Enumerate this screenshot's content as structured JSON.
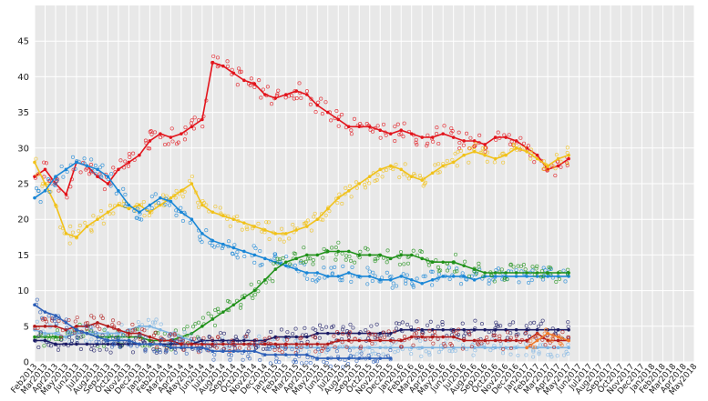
{
  "chart_data": {
    "type": "line",
    "title": "",
    "xlabel": "",
    "ylabel": "",
    "ylim": [
      0,
      50
    ],
    "y_ticks": [
      0,
      5,
      10,
      15,
      20,
      25,
      30,
      35,
      40,
      45
    ],
    "grid": true,
    "background_color": "#e8e8e8",
    "legend": "none",
    "x_months": [
      "Feb2013",
      "Mar2013",
      "Apr2013",
      "May2013",
      "Jun2013",
      "Jul2013",
      "Aug2013",
      "Sep2013",
      "Oct2013",
      "Nov2013",
      "Dec2013",
      "Jan2014",
      "Feb2014",
      "Mar2014",
      "Apr2014",
      "May2014",
      "Jun2014",
      "Jul2014",
      "Aug2014",
      "Sep2014",
      "Oct2014",
      "Nov2014",
      "Dec2014",
      "Jan2015",
      "Feb2015",
      "Mar2015",
      "Apr2015",
      "May2015",
      "Jun2015",
      "Jul2015",
      "Aug2015",
      "Sep2015",
      "Oct2015",
      "Nov2015",
      "Dec2015",
      "Jan2016",
      "Feb2016",
      "Mar2016",
      "Apr2016",
      "May2016",
      "Jun2016",
      "Jul2016",
      "Aug2016",
      "Sep2016",
      "Oct2016",
      "Nov2016",
      "Dec2016",
      "Jan2017",
      "Feb2017",
      "Mar2017",
      "Apr2017",
      "May2017",
      "Jun2017",
      "Jul2017",
      "Aug2017",
      "Sep2017",
      "Oct2017",
      "Nov2017",
      "Dec2017",
      "Jan2018",
      "Feb2018",
      "Mar2018",
      "Apr2018",
      "May2018"
    ],
    "x_tick_labels": [
      "Feb2013",
      "Mar2013",
      "Apr2013",
      "May2013",
      "Jun2013",
      "Jul2013",
      "Aug2013",
      "Sep2013",
      "Oct2013",
      "Nov2013",
      "Dec2013",
      "Jan2014",
      "Feb2014",
      "Mar2014",
      "Apr2014",
      "May2014",
      "Jun2014",
      "Jul2014",
      "Aug2014",
      "Sep2014",
      "Oct2014",
      "Nov2014",
      "Dec2014",
      "Jan2015",
      "Feb2015",
      "Mar2015",
      "Apr2015",
      "May2015",
      "Jun2015",
      "Jul2015",
      "Aug2015",
      "Sep2015",
      "Oct2015",
      "Nov2015",
      "Dec2015",
      "Jan2016",
      "Feb2016",
      "Mar2016",
      "Apr2016",
      "May2016",
      "Jun2016",
      "Jul2016",
      "Aug2016",
      "Sep2016",
      "Oct2016",
      "Nov2016",
      "Dec2016",
      "Jan2017",
      "Feb2017",
      "Mar2017",
      "Apr2017",
      "May2017",
      "Jun2017",
      "Jul2017",
      "Aug2017",
      "Sep2017",
      "Oct2017",
      "Nov2017",
      "Dec2017",
      "Jan2018",
      "Feb2018",
      "Mar2018",
      "Apr2018",
      "May2018"
    ],
    "series": [
      {
        "color": "#e3141c",
        "x": [
          "Feb2013",
          "Mar2013",
          "Apr2013",
          "May2013",
          "Jun2013",
          "Jul2013",
          "Aug2013",
          "Sep2013",
          "Oct2013",
          "Nov2013",
          "Dec2013",
          "Jan2014",
          "Feb2014",
          "Mar2014",
          "Apr2014",
          "May2014",
          "Jun2014",
          "Jul2014",
          "Aug2014",
          "Sep2014",
          "Oct2014",
          "Nov2014",
          "Dec2014",
          "Jan2015",
          "Feb2015",
          "Mar2015",
          "Apr2015",
          "May2015",
          "Jun2015",
          "Jul2015",
          "Aug2015",
          "Sep2015",
          "Oct2015",
          "Nov2015",
          "Dec2015",
          "Jan2016",
          "Feb2016",
          "Mar2016",
          "Apr2016",
          "May2016",
          "Jun2016",
          "Jul2016",
          "Aug2016",
          "Sep2016",
          "Oct2016",
          "Nov2016",
          "Dec2016",
          "Jan2017",
          "Feb2017",
          "Mar2017",
          "Apr2017",
          "May2017"
        ],
        "y": [
          26,
          27,
          25,
          23.5,
          28,
          27.5,
          26,
          25,
          27,
          28,
          29,
          31,
          32,
          31.5,
          32,
          33,
          34,
          42,
          41.5,
          40.5,
          39.5,
          39,
          37.5,
          37,
          37.5,
          38,
          37.5,
          36,
          35,
          34,
          33,
          33,
          33,
          32.5,
          32,
          32.5,
          32,
          31.5,
          31.5,
          32,
          31.5,
          31,
          31,
          30.5,
          31.5,
          31.5,
          31,
          30,
          29,
          27,
          27.5,
          28.5
        ]
      },
      {
        "color": "#f1c21b",
        "x": [
          "Feb2013",
          "Mar2013",
          "Apr2013",
          "May2013",
          "Jun2013",
          "Jul2013",
          "Aug2013",
          "Sep2013",
          "Oct2013",
          "Nov2013",
          "Dec2013",
          "Jan2014",
          "Feb2014",
          "Mar2014",
          "Apr2014",
          "May2014",
          "Jun2014",
          "Jul2014",
          "Aug2014",
          "Sep2014",
          "Oct2014",
          "Nov2014",
          "Dec2014",
          "Jan2015",
          "Feb2015",
          "Mar2015",
          "Apr2015",
          "May2015",
          "Jun2015",
          "Jul2015",
          "Aug2015",
          "Sep2015",
          "Oct2015",
          "Nov2015",
          "Dec2015",
          "Jan2016",
          "Feb2016",
          "Mar2016",
          "Apr2016",
          "May2016",
          "Jun2016",
          "Jul2016",
          "Aug2016",
          "Sep2016",
          "Oct2016",
          "Nov2016",
          "Dec2016",
          "Jan2017",
          "Feb2017",
          "Mar2017",
          "Apr2017",
          "May2017"
        ],
        "y": [
          28,
          25,
          22,
          18,
          17.5,
          19,
          20,
          21,
          22,
          21.5,
          22,
          21,
          22,
          23,
          24,
          25,
          22,
          21,
          20.5,
          20,
          19.5,
          19,
          18.5,
          18,
          18,
          18.5,
          19,
          20,
          21.5,
          23,
          24,
          25,
          26,
          27,
          27.5,
          27,
          26,
          25.5,
          26.5,
          27.5,
          28,
          29,
          29.5,
          29,
          28.5,
          29,
          30,
          29.5,
          28.5,
          27.5,
          28.5,
          29
        ]
      },
      {
        "color": "#1a87d7",
        "x": [
          "Feb2013",
          "Mar2013",
          "Apr2013",
          "May2013",
          "Jun2013",
          "Jul2013",
          "Aug2013",
          "Sep2013",
          "Oct2013",
          "Nov2013",
          "Dec2013",
          "Jan2014",
          "Feb2014",
          "Mar2014",
          "Apr2014",
          "May2014",
          "Jun2014",
          "Jul2014",
          "Aug2014",
          "Sep2014",
          "Oct2014",
          "Nov2014",
          "Dec2014",
          "Jan2015",
          "Feb2015",
          "Mar2015",
          "Apr2015",
          "May2015",
          "Jun2015",
          "Jul2015",
          "Aug2015",
          "Sep2015",
          "Oct2015",
          "Nov2015",
          "Dec2015",
          "Jan2016",
          "Feb2016",
          "Mar2016",
          "Apr2016",
          "May2016",
          "Jun2016",
          "Jul2016",
          "Aug2016",
          "Sep2016",
          "Oct2016",
          "Nov2016",
          "Dec2016",
          "Jan2017",
          "Feb2017",
          "Mar2017",
          "Apr2017",
          "May2017"
        ],
        "y": [
          23,
          24,
          26,
          27,
          28,
          27.5,
          27,
          26,
          24,
          22,
          21,
          22,
          23,
          22.5,
          21,
          20,
          18,
          17,
          16.5,
          16,
          15.5,
          15,
          14.5,
          14,
          13.5,
          13,
          12.5,
          12.5,
          12,
          12,
          12.5,
          12,
          12,
          11.5,
          11.5,
          12,
          11.5,
          11,
          11.5,
          12,
          12,
          12,
          11.5,
          12,
          12,
          12,
          12,
          12,
          12,
          12,
          12,
          12
        ]
      },
      {
        "color": "#21921a",
        "x": [
          "Feb2013",
          "Mar2013",
          "Apr2013",
          "May2013",
          "Jun2013",
          "Jul2013",
          "Aug2013",
          "Sep2013",
          "Oct2013",
          "Nov2013",
          "Dec2013",
          "Jan2014",
          "Feb2014",
          "Mar2014",
          "Apr2014",
          "May2014",
          "Jun2014",
          "Jul2014",
          "Aug2014",
          "Sep2014",
          "Oct2014",
          "Nov2014",
          "Dec2014",
          "Jan2015",
          "Feb2015",
          "Mar2015",
          "Apr2015",
          "May2015",
          "Jun2015",
          "Jul2015",
          "Aug2015",
          "Sep2015",
          "Oct2015",
          "Nov2015",
          "Dec2015",
          "Jan2016",
          "Feb2016",
          "Mar2016",
          "Apr2016",
          "May2016",
          "Jun2016",
          "Jul2016",
          "Aug2016",
          "Sep2016",
          "Oct2016",
          "Nov2016",
          "Dec2016",
          "Jan2017",
          "Feb2017",
          "Mar2017",
          "Apr2017",
          "May2017"
        ],
        "y": [
          3.5,
          3.5,
          3.5,
          3.5,
          4,
          4,
          3.5,
          3.5,
          3.5,
          3.5,
          3.5,
          3,
          3,
          3,
          3.5,
          4,
          5,
          6,
          7,
          8,
          9,
          10,
          11.5,
          13,
          14,
          14.5,
          15,
          15,
          15.5,
          15.5,
          15.5,
          15,
          15,
          15,
          14.5,
          15,
          15,
          14.5,
          14,
          14,
          14,
          13.5,
          13,
          12.5,
          12.5,
          12.5,
          12.5,
          12.5,
          12.5,
          12.5,
          12.5,
          12.5
        ]
      },
      {
        "color": "#7fb5e3",
        "x": [
          "Feb2013",
          "Mar2013",
          "Apr2013",
          "May2013",
          "Jun2013",
          "Jul2013",
          "Aug2013",
          "Sep2013",
          "Oct2013",
          "Nov2013",
          "Dec2013",
          "Jan2014",
          "Feb2014",
          "Mar2014",
          "Apr2014",
          "May2014",
          "Jun2014",
          "Jul2014",
          "Aug2014",
          "Sep2014",
          "Oct2014",
          "Nov2014",
          "Dec2014",
          "Jan2015",
          "Feb2015",
          "Mar2015",
          "Apr2015",
          "May2015",
          "Jun2015",
          "Jul2015",
          "Aug2015",
          "Sep2015",
          "Oct2015",
          "Nov2015",
          "Dec2015",
          "Jan2016",
          "Feb2016",
          "Mar2016",
          "Apr2016",
          "May2016",
          "Jun2016",
          "Jul2016",
          "Aug2016",
          "Sep2016",
          "Oct2016",
          "Nov2016",
          "Dec2016",
          "Jan2017",
          "Feb2017",
          "Mar2017",
          "Apr2017",
          "May2017"
        ],
        "y": [
          4.5,
          4,
          4,
          3.5,
          4,
          4,
          4,
          4,
          4,
          4.5,
          5,
          5,
          4.5,
          4,
          3.5,
          3,
          2.5,
          2.5,
          2.5,
          2.5,
          2.5,
          2.5,
          2.5,
          2,
          2,
          2,
          2,
          2,
          2,
          2,
          2,
          2,
          2,
          2,
          2,
          2,
          2,
          2,
          2,
          2,
          2,
          2,
          2,
          2,
          2,
          2,
          2,
          2,
          2,
          2,
          2,
          2
        ]
      },
      {
        "color": "#1c1c66",
        "x": [
          "Feb2013",
          "Mar2013",
          "Apr2013",
          "May2013",
          "Jun2013",
          "Jul2013",
          "Aug2013",
          "Sep2013",
          "Oct2013",
          "Nov2013",
          "Dec2013",
          "Jan2014",
          "Feb2014",
          "Mar2014",
          "Apr2014",
          "May2014",
          "Jun2014",
          "Jul2014",
          "Aug2014",
          "Sep2014",
          "Oct2014",
          "Nov2014",
          "Dec2014",
          "Jan2015",
          "Feb2015",
          "Mar2015",
          "Apr2015",
          "May2015",
          "Jun2015",
          "Jul2015",
          "Aug2015",
          "Sep2015",
          "Oct2015",
          "Nov2015",
          "Dec2015",
          "Jan2016",
          "Feb2016",
          "Mar2016",
          "Apr2016",
          "May2016",
          "Jun2016",
          "Jul2016",
          "Aug2016",
          "Sep2016",
          "Oct2016",
          "Nov2016",
          "Dec2016",
          "Jan2017",
          "Feb2017",
          "Mar2017",
          "Apr2017",
          "May2017"
        ],
        "y": [
          3,
          3,
          2.5,
          2.5,
          2.5,
          2.5,
          2.5,
          2.5,
          2.5,
          2.5,
          2.5,
          2.5,
          2.5,
          2.5,
          2.5,
          2.5,
          3,
          3,
          3,
          3,
          3,
          3,
          3,
          3.5,
          3.5,
          3.5,
          3.5,
          4,
          4,
          4,
          4,
          4,
          4,
          4,
          4,
          4.5,
          4.5,
          4.5,
          4.5,
          4.5,
          4.5,
          4.5,
          4.5,
          4.5,
          4.5,
          4.5,
          4.5,
          4.5,
          4.5,
          4.5,
          4.5,
          4.5
        ]
      },
      {
        "color": "#b31b1b",
        "x": [
          "Feb2013",
          "Mar2013",
          "Apr2013",
          "May2013",
          "Jun2013",
          "Jul2013",
          "Aug2013",
          "Sep2013",
          "Oct2013",
          "Nov2013",
          "Dec2013",
          "Jan2014",
          "Feb2014",
          "Mar2014",
          "Apr2014",
          "May2014",
          "Jun2014",
          "Jul2014",
          "Aug2014",
          "Sep2014",
          "Oct2014",
          "Nov2014",
          "Dec2014",
          "Jan2015",
          "Feb2015",
          "Mar2015",
          "Apr2015",
          "May2015",
          "Jun2015",
          "Jul2015",
          "Aug2015",
          "Sep2015",
          "Oct2015",
          "Nov2015",
          "Dec2015",
          "Jan2016",
          "Feb2016",
          "Mar2016",
          "Apr2016",
          "May2016",
          "Jun2016",
          "Jul2016",
          "Aug2016",
          "Sep2016",
          "Oct2016",
          "Nov2016",
          "Dec2016",
          "Jan2017",
          "Feb2017",
          "Mar2017",
          "Apr2017",
          "May2017"
        ],
        "y": [
          5,
          5,
          5,
          4.5,
          5,
          5,
          5.5,
          5,
          4.5,
          4,
          4,
          3.5,
          3,
          3,
          2.5,
          2.5,
          2.5,
          2.5,
          2.5,
          2.5,
          2.5,
          2.5,
          2.5,
          2.5,
          2.5,
          2.5,
          2.5,
          2.5,
          2.5,
          3,
          3,
          3,
          3,
          3,
          3,
          3,
          3.5,
          3.5,
          3.5,
          3.5,
          3.5,
          3,
          3,
          3,
          3,
          3,
          3,
          3,
          4,
          3,
          3,
          3
        ]
      },
      {
        "color": "#2d5fb8",
        "x": [
          "Feb2013",
          "Mar2013",
          "Apr2013",
          "May2013",
          "Jun2013",
          "Jul2013",
          "Aug2013",
          "Sep2013",
          "Oct2013",
          "Nov2013",
          "Dec2013",
          "Jan2014",
          "Feb2014",
          "Mar2014",
          "Apr2014",
          "May2014",
          "Jun2014",
          "Jul2014",
          "Aug2014",
          "Sep2014",
          "Oct2014",
          "Nov2014",
          "Dec2014",
          "Jan2015",
          "Feb2015",
          "Mar2015",
          "Apr2015",
          "May2015",
          "Jun2015",
          "Jul2015",
          "Aug2015",
          "Sep2015",
          "Oct2015",
          "Nov2015",
          "Dec2015"
        ],
        "y": [
          8,
          7,
          6.5,
          5.5,
          4.5,
          4,
          3.5,
          3,
          3,
          3,
          2.5,
          2.5,
          2.5,
          2,
          2,
          2,
          2,
          1.5,
          1.5,
          1.5,
          1.5,
          1.5,
          1,
          1,
          1,
          1,
          1,
          0.5,
          0.5,
          0.5,
          0.5,
          0.5,
          0.5,
          0.5,
          0.5
        ]
      },
      {
        "color": "#f07a2a",
        "x": [
          "Jan2017",
          "Feb2017",
          "Mar2017",
          "Apr2017",
          "May2017"
        ],
        "y": [
          2,
          3,
          4,
          3.5,
          3
        ]
      }
    ]
  }
}
